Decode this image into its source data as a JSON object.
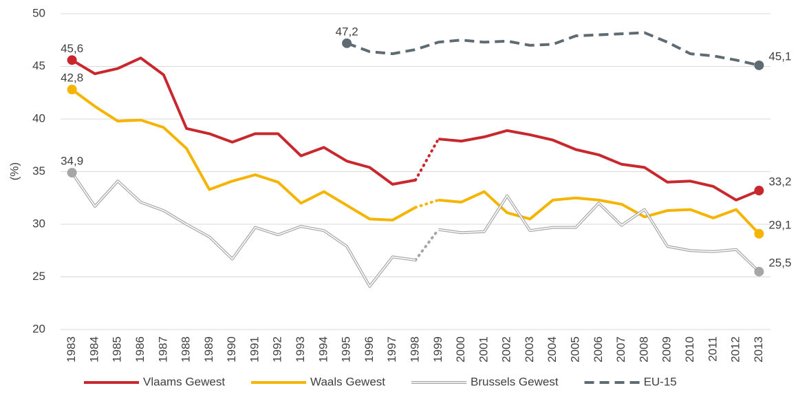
{
  "chart_data": {
    "type": "line",
    "y_label": "(%)",
    "categories": [
      "1983",
      "1984",
      "1985",
      "1986",
      "1987",
      "1988",
      "1989",
      "1990",
      "1991",
      "1992",
      "1993",
      "1994",
      "1995",
      "1996",
      "1997",
      "1998",
      "1999",
      "2000",
      "2001",
      "2002",
      "2003",
      "2004",
      "2005",
      "2006",
      "2007",
      "2008",
      "2009",
      "2010",
      "2011",
      "2012",
      "2013"
    ],
    "ylim": [
      20,
      50
    ],
    "yticks": [
      20,
      25,
      30,
      35,
      40,
      45,
      50
    ],
    "grid": true,
    "legend": "bottom",
    "series": [
      {
        "name": "Vlaams Gewest",
        "color": "#c8282d",
        "style": "solid",
        "values": [
          45.6,
          44.3,
          44.8,
          45.8,
          44.2,
          39.1,
          38.6,
          37.8,
          38.6,
          38.6,
          36.5,
          37.3,
          36.0,
          35.4,
          33.8,
          34.2,
          38.1,
          37.9,
          38.3,
          38.9,
          38.5,
          38.0,
          37.1,
          36.6,
          35.7,
          35.4,
          34.0,
          34.1,
          33.6,
          32.3,
          33.2
        ],
        "value_labels": [
          "45,6",
          null,
          null,
          null,
          null,
          null,
          null,
          null,
          null,
          null,
          null,
          null,
          null,
          null,
          null,
          null,
          null,
          null,
          null,
          null,
          null,
          null,
          null,
          null,
          null,
          null,
          null,
          null,
          null,
          null,
          "33,2"
        ]
      },
      {
        "name": "Waals Gewest",
        "color": "#f5b400",
        "style": "solid",
        "values": [
          42.8,
          41.2,
          39.8,
          39.9,
          39.2,
          37.2,
          33.3,
          34.1,
          34.7,
          34.0,
          32.0,
          33.1,
          31.8,
          30.5,
          30.4,
          31.6,
          32.3,
          32.1,
          33.1,
          31.1,
          30.5,
          32.3,
          32.5,
          32.3,
          31.9,
          30.7,
          31.3,
          31.4,
          30.6,
          31.4,
          29.1
        ],
        "value_labels": [
          "42,8",
          null,
          null,
          null,
          null,
          null,
          null,
          null,
          null,
          null,
          null,
          null,
          null,
          null,
          null,
          null,
          null,
          null,
          null,
          null,
          null,
          null,
          null,
          null,
          null,
          null,
          null,
          null,
          null,
          null,
          "29,1"
        ]
      },
      {
        "name": "Brussels Gewest",
        "color": "#a6a6a6",
        "style": "double",
        "values": [
          34.9,
          31.7,
          34.1,
          32.1,
          31.3,
          30.0,
          28.8,
          26.7,
          29.7,
          29.0,
          29.8,
          29.4,
          27.9,
          24.1,
          26.9,
          26.6,
          29.5,
          29.2,
          29.3,
          32.7,
          29.4,
          29.7,
          29.7,
          32.0,
          29.9,
          31.4,
          27.9,
          27.5,
          27.4,
          27.6,
          25.5
        ],
        "value_labels": [
          "34,9",
          null,
          null,
          null,
          null,
          null,
          null,
          null,
          null,
          null,
          null,
          null,
          null,
          null,
          null,
          null,
          null,
          null,
          null,
          null,
          null,
          null,
          null,
          null,
          null,
          null,
          null,
          null,
          null,
          null,
          "25,5"
        ]
      },
      {
        "name": "EU-15",
        "color": "#5f6b73",
        "style": "dashed",
        "values": [
          null,
          null,
          null,
          null,
          null,
          null,
          null,
          null,
          null,
          null,
          null,
          null,
          47.2,
          46.4,
          46.2,
          46.6,
          47.3,
          47.5,
          47.3,
          47.4,
          47.0,
          47.1,
          47.9,
          48.0,
          48.1,
          48.2,
          47.3,
          46.2,
          46.0,
          45.6,
          45.1
        ],
        "value_labels": [
          null,
          null,
          null,
          null,
          null,
          null,
          null,
          null,
          null,
          null,
          null,
          null,
          "47,2",
          null,
          null,
          null,
          null,
          null,
          null,
          null,
          null,
          null,
          null,
          null,
          null,
          null,
          null,
          null,
          null,
          null,
          "45,1"
        ]
      }
    ]
  }
}
